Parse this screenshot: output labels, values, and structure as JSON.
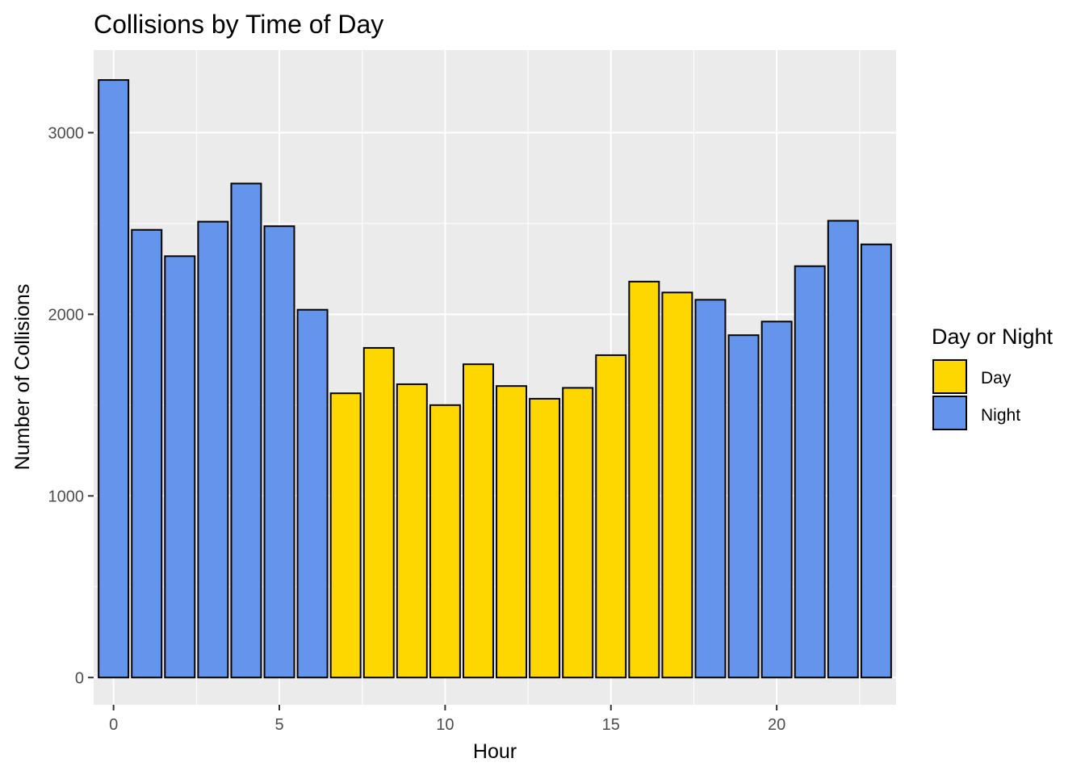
{
  "chart_data": {
    "type": "bar",
    "title": "Collisions by Time of Day",
    "xlabel": "Hour",
    "ylabel": "Number of Collisions",
    "x": [
      0,
      1,
      2,
      3,
      4,
      5,
      6,
      7,
      8,
      9,
      10,
      11,
      12,
      13,
      14,
      15,
      16,
      17,
      18,
      19,
      20,
      21,
      22,
      23
    ],
    "values": [
      3290,
      2465,
      2320,
      2510,
      2720,
      2485,
      2025,
      1565,
      1815,
      1615,
      1500,
      1725,
      1605,
      1535,
      1595,
      1775,
      2180,
      2120,
      2080,
      1885,
      1960,
      2265,
      2515,
      2385
    ],
    "groups": [
      "Night",
      "Night",
      "Night",
      "Night",
      "Night",
      "Night",
      "Night",
      "Day",
      "Day",
      "Day",
      "Day",
      "Day",
      "Day",
      "Day",
      "Day",
      "Day",
      "Day",
      "Day",
      "Night",
      "Night",
      "Night",
      "Night",
      "Night",
      "Night"
    ],
    "xlim": [
      -0.6,
      23.6
    ],
    "ylim": [
      -150,
      3455
    ],
    "x_ticks": [
      0,
      5,
      10,
      15,
      20
    ],
    "y_ticks": [
      0,
      1000,
      2000,
      3000
    ],
    "x_tick_labels": [
      "0",
      "5",
      "10",
      "15",
      "20"
    ],
    "y_tick_labels": [
      "0",
      "1000",
      "2000",
      "3000"
    ],
    "grid": true,
    "panel_background": "#EBEBEB",
    "legend": {
      "title": "Day or Night",
      "position": "right",
      "entries": [
        {
          "label": "Day",
          "color": "#FFD700"
        },
        {
          "label": "Night",
          "color": "#6495ED"
        }
      ]
    },
    "colors": {
      "Day": "#FFD700",
      "Night": "#6495ED"
    }
  }
}
